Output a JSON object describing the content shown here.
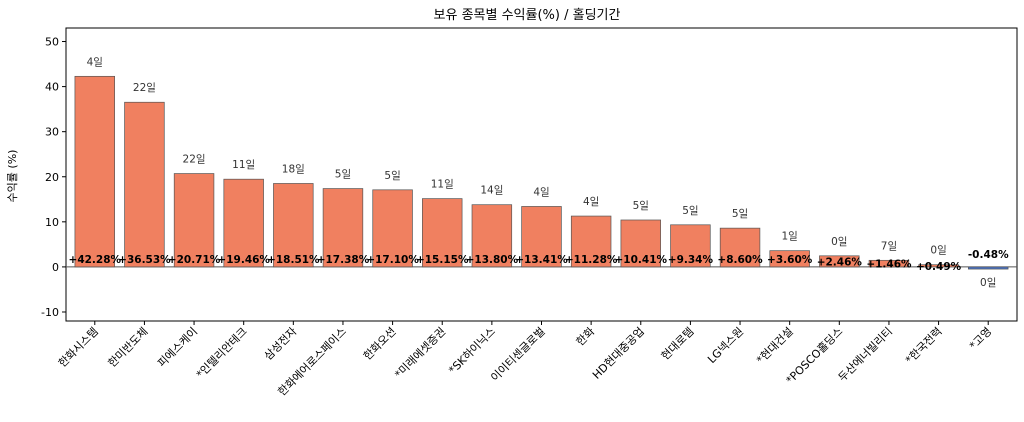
{
  "chart_data": {
    "type": "bar",
    "title": "보유 종목별 수익률(%) / 홀딩기간",
    "xlabel": "",
    "ylabel": "수익률 (%)",
    "ylim": [
      -12,
      53
    ],
    "yticks": [
      -10,
      0,
      10,
      20,
      30,
      40,
      50
    ],
    "grid": false,
    "colors": {
      "positive": "#f08060",
      "negative": "#4a72c4",
      "edge": "#555555",
      "zero_line": "#555555"
    },
    "categories": [
      "한화시스템",
      "한미반도체",
      "피에스케이",
      "*인텔리안테크",
      "삼성전자",
      "한화에어로스페이스",
      "한화오션",
      "*미래에셋증권",
      "*SK하이닉스",
      "이이티센글로벌",
      "한화",
      "HD현대중공업",
      "현대로템",
      "LG넥스원",
      "*현대건설",
      "*POSCO홀딩스",
      "두산에너빌리티",
      "*한국전력",
      "*고영"
    ],
    "values": [
      42.28,
      36.53,
      20.71,
      19.46,
      18.51,
      17.38,
      17.1,
      15.15,
      13.8,
      13.41,
      11.28,
      10.41,
      9.34,
      8.6,
      3.6,
      2.46,
      1.46,
      0.49,
      -0.48
    ],
    "value_labels": [
      "+42.28%",
      "+36.53%",
      "+20.71%",
      "+19.46%",
      "+18.51%",
      "+17.38%",
      "+17.10%",
      "+15.15%",
      "+13.80%",
      "+13.41%",
      "+11.28%",
      "+10.41%",
      "+9.34%",
      "+8.60%",
      "+3.60%",
      "+2.46%",
      "+1.46%",
      "+0.49%",
      "-0.48%"
    ],
    "holding_days": [
      "4일",
      "22일",
      "22일",
      "11일",
      "18일",
      "5일",
      "5일",
      "11일",
      "14일",
      "4일",
      "4일",
      "5일",
      "5일",
      "5일",
      "1일",
      "0일",
      "7일",
      "0일",
      "0일"
    ]
  }
}
